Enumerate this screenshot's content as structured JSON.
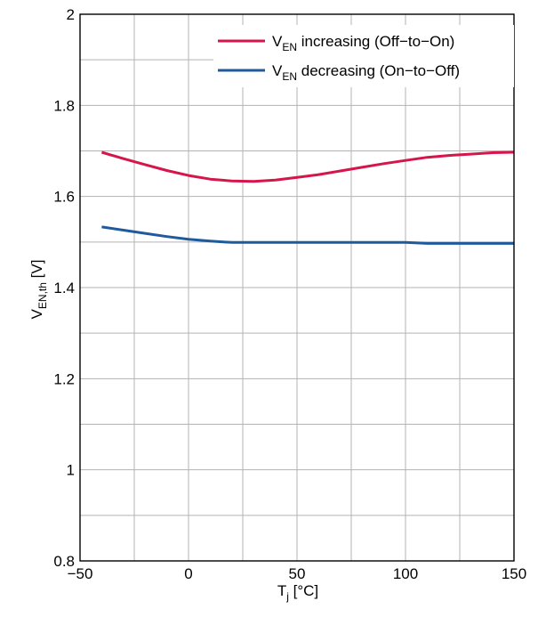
{
  "chart_data": {
    "type": "line",
    "title": "",
    "xlabel": {
      "main": "T",
      "sub": "j",
      "unit": " [°C]"
    },
    "ylabel": {
      "main": "V",
      "sub": "EN,th",
      "unit": " [V]"
    },
    "xlim": [
      -50,
      150
    ],
    "ylim": [
      0.8,
      2
    ],
    "x_ticks": [
      -50,
      0,
      50,
      100,
      150
    ],
    "x_tick_labels": [
      "−50",
      "0",
      "50",
      "100",
      "150"
    ],
    "y_ticks": [
      0.8,
      1,
      1.2,
      1.4,
      1.6,
      1.8,
      2
    ],
    "y_tick_labels": [
      "0.8",
      "1",
      "1.2",
      "1.4",
      "1.6",
      "1.8",
      "2"
    ],
    "x_grid_step": 25,
    "y_grid_step": 0.1,
    "grid": true,
    "legend_position": "top-right",
    "series": [
      {
        "name": {
          "main": "V",
          "sub": "EN",
          "rest": " increasing (Off−to−On)"
        },
        "color": "#d6164a",
        "x": [
          -40,
          -30,
          -20,
          -10,
          0,
          10,
          20,
          30,
          40,
          50,
          60,
          70,
          80,
          90,
          100,
          110,
          120,
          130,
          140,
          150
        ],
        "y": [
          1.697,
          1.683,
          1.67,
          1.657,
          1.646,
          1.638,
          1.634,
          1.633,
          1.636,
          1.642,
          1.648,
          1.656,
          1.664,
          1.672,
          1.679,
          1.686,
          1.69,
          1.693,
          1.696,
          1.697
        ]
      },
      {
        "name": {
          "main": "V",
          "sub": "EN",
          "rest": " decreasing (On−to−Off)"
        },
        "color": "#1f5a9c",
        "x": [
          -40,
          -30,
          -20,
          -10,
          0,
          10,
          20,
          30,
          40,
          50,
          60,
          70,
          80,
          90,
          100,
          110,
          120,
          130,
          140,
          150
        ],
        "y": [
          1.533,
          1.526,
          1.519,
          1.512,
          1.506,
          1.502,
          1.499,
          1.499,
          1.499,
          1.499,
          1.499,
          1.499,
          1.499,
          1.499,
          1.499,
          1.497,
          1.497,
          1.497,
          1.497,
          1.497
        ]
      }
    ]
  }
}
